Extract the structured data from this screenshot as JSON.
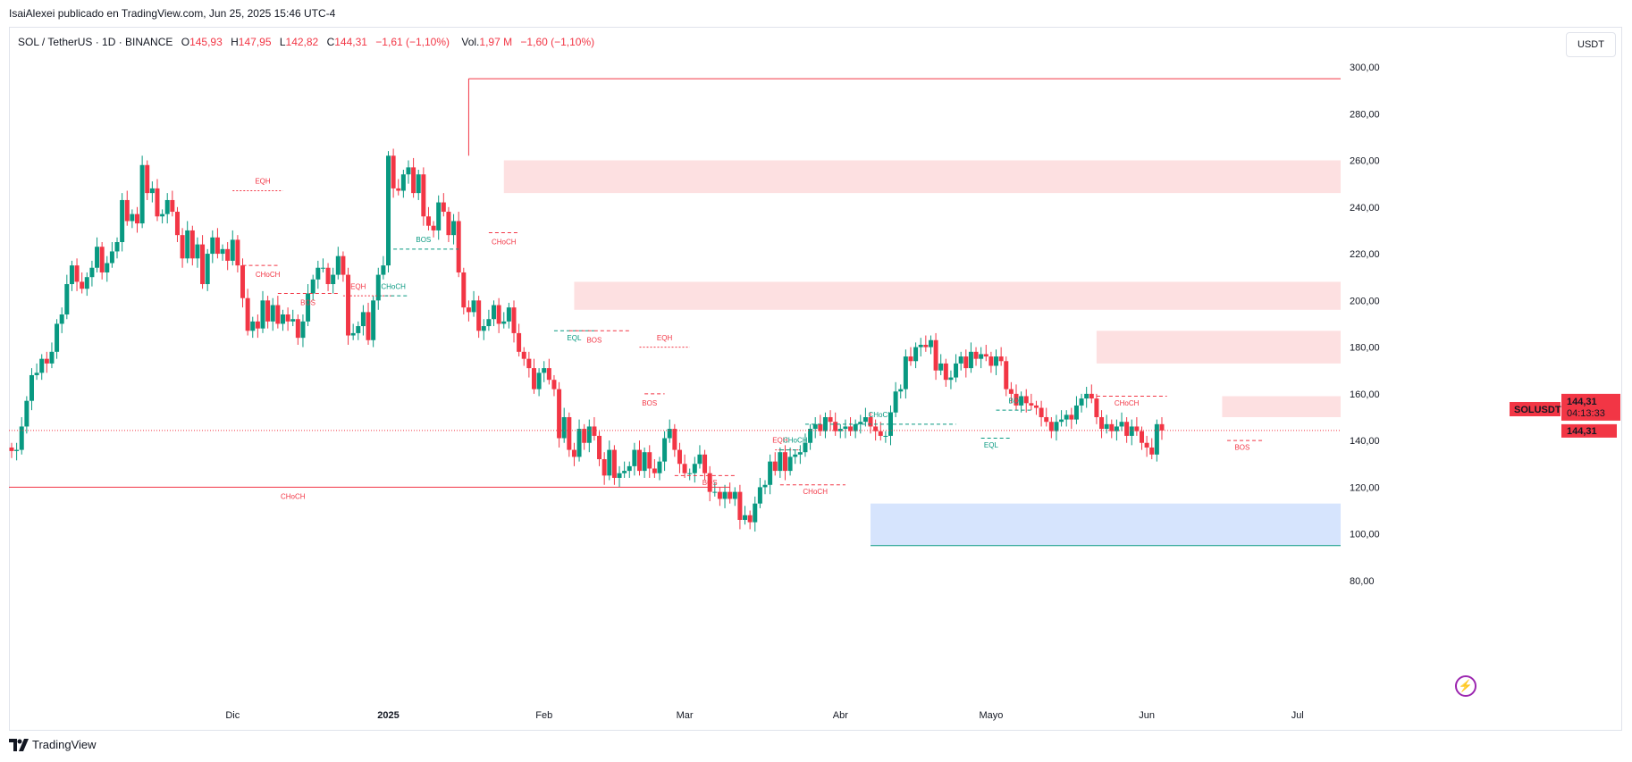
{
  "caption": "IsaiAlexei publicado en TradingView.com, Jun 25, 2025 15:46 UTC-4",
  "legend": {
    "symbol": "SOL / TetherUS · 1D · BINANCE",
    "o_label": "O",
    "o": "145,93",
    "h_label": "H",
    "h": "147,95",
    "l_label": "L",
    "l": "142,82",
    "c_label": "C",
    "c": "144,31",
    "change": "−1,61 (−1,10%)",
    "vol_label": "Vol.",
    "vol": "1,97 M",
    "vol_change": "−1,60 (−1,10%)"
  },
  "currency_button": "USDT",
  "footer_brand": "TradingView",
  "bolt_icon": "lightning-icon",
  "colors": {
    "up": "#089981",
    "down": "#f23645",
    "zone_red": "#fde0e1",
    "zone_blue": "#d6e4fd",
    "grid": "#ffffff"
  },
  "chart_data": {
    "type": "candlestick",
    "ylim": [
      72,
      308
    ],
    "y_ticks": [
      80,
      100,
      120,
      140,
      160,
      180,
      200,
      220,
      240,
      260,
      280,
      300
    ],
    "y_tick_labels": [
      "80,00",
      "100,00",
      "120,00",
      "140,00",
      "160,00",
      "180,00",
      "200,00",
      "220,00",
      "240,00",
      "260,00",
      "280,00",
      "300,00"
    ],
    "x_labels": [
      "Dic",
      "2025",
      "Feb",
      "Mar",
      "Abr",
      "Mayo",
      "Jun",
      "Jul"
    ],
    "x_label_dates": [
      "2024-12-01",
      "2025-01-01",
      "2025-02-01",
      "2025-03-01",
      "2025-04-01",
      "2025-05-01",
      "2025-06-01",
      "2025-07-01"
    ],
    "first_date": "2024-10-18",
    "last_date": "2025-06-25",
    "close": [
      135.5,
      136,
      146,
      157,
      168,
      169,
      175,
      173,
      178,
      190,
      194,
      207,
      215,
      208,
      205,
      210,
      214,
      223,
      212,
      216,
      221,
      225,
      243,
      234,
      237,
      233,
      258,
      246,
      248,
      236,
      237,
      243,
      238,
      228,
      218,
      230,
      218,
      224,
      207,
      220,
      227,
      220,
      222,
      217,
      226,
      215,
      201,
      187,
      191,
      188,
      200,
      191,
      198,
      190,
      194,
      191,
      192,
      184,
      191,
      203,
      209,
      214,
      214,
      207,
      211,
      219,
      211,
      185,
      186,
      189,
      195,
      183,
      200,
      211,
      215,
      262,
      248,
      247,
      254,
      257,
      246,
      254,
      236,
      232,
      230,
      242,
      238,
      228,
      234,
      212,
      197,
      195,
      200,
      187,
      189,
      192,
      198,
      190,
      191,
      197,
      186,
      178,
      175,
      171,
      162,
      169,
      171,
      166,
      162,
      141,
      150,
      136,
      133,
      145,
      139,
      146,
      142,
      132,
      125,
      136,
      124,
      126,
      127,
      129,
      136,
      127,
      135,
      128,
      126,
      131,
      141,
      145,
      136,
      130,
      126,
      126,
      130,
      134,
      126,
      118,
      118,
      115,
      118,
      115,
      118,
      106,
      108,
      105,
      113,
      120,
      121,
      131,
      127,
      135,
      127,
      133,
      134,
      135,
      139,
      145,
      147,
      144,
      150,
      148,
      144,
      145,
      146,
      144,
      147,
      148,
      150,
      146,
      144,
      142,
      142,
      152,
      161,
      162,
      176,
      174,
      180,
      181,
      180,
      183,
      170,
      173,
      166,
      167,
      173,
      176,
      171,
      178,
      175,
      177,
      176,
      172,
      176,
      174,
      162,
      160,
      155,
      159,
      156,
      155,
      154,
      150,
      148,
      144,
      148,
      149,
      151,
      149,
      155,
      158,
      160,
      158,
      150,
      145,
      147,
      144,
      146,
      148,
      142,
      146,
      144,
      139,
      137,
      134,
      147,
      144.31
    ]
  },
  "overlay_labels": {
    "eqh_1": "EQH",
    "choch_dec": "CHoCH",
    "bos_dec": "BOS",
    "eqh_2": "EQH",
    "choch_jan": "CHoCH",
    "bos_jan": "BOS",
    "choch_big": "CHoCH",
    "choch_top": "CHoCH",
    "eql_feb": "EQL",
    "bos_feb": "BOS",
    "eqh_feb": "EQH",
    "bos_feb2": "BOS",
    "bos_mar": "BOS",
    "eqh_mar": "EQH",
    "choch_mar": "CHoCH",
    "choch_mar2": "CHoCH",
    "choch_apr": "CHoCH",
    "bos_may": "BOS",
    "eql_may": "EQL",
    "choch_jun": "CHoCH",
    "bos_jun": "BOS"
  },
  "price_tag": {
    "symbol": "SOLUSDT",
    "price": "144,31",
    "countdown": "04:13:33",
    "price2": "144,31"
  }
}
